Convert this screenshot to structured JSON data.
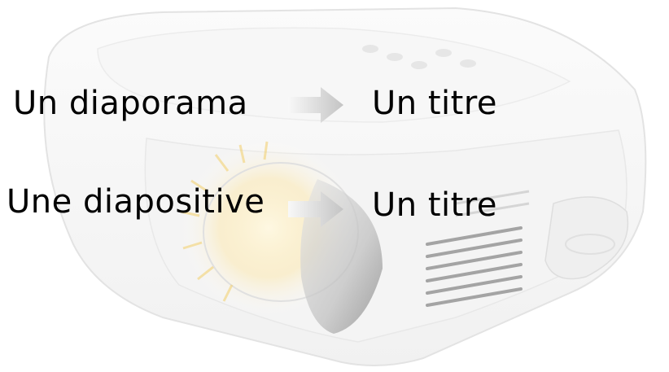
{
  "background": {
    "image_icon": "projector-icon",
    "tint": "#f2f2f2"
  },
  "rows": [
    {
      "left_text": "Un diaporama",
      "right_text": "Un titre"
    },
    {
      "left_text": "Une diapositive",
      "right_text": "Un titre"
    }
  ],
  "arrow": {
    "icon": "arrow-right-icon",
    "color_light": "#f8f8f8",
    "color_dark": "#c4c4c4"
  }
}
